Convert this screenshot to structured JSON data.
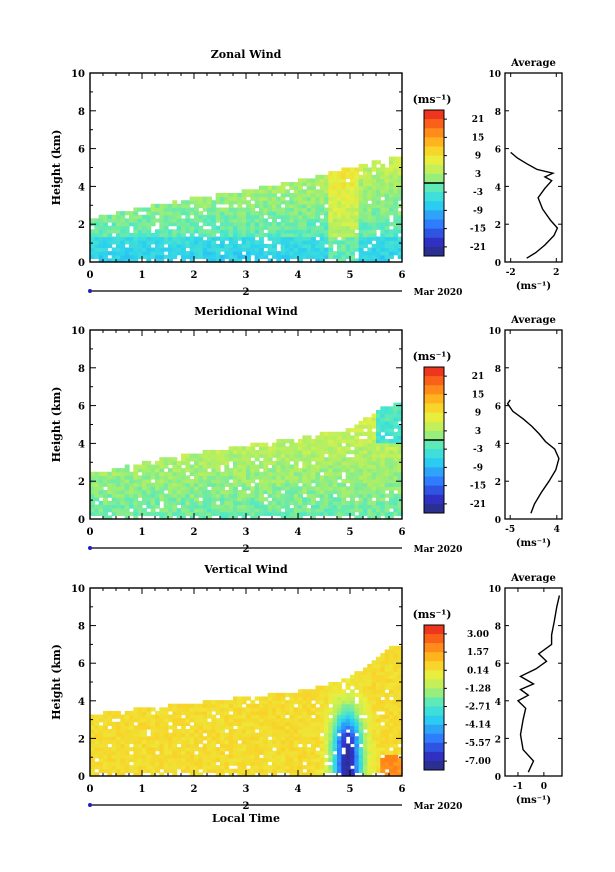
{
  "figure": {
    "date_label": "Mar 2020",
    "xlabel_bottom": "Local Time",
    "timeline_day": "2"
  },
  "chart_data": [
    {
      "type": "heatmap",
      "title": "Zonal Wind",
      "ylabel": "Height (km)",
      "xlim": [
        0,
        6
      ],
      "ylim": [
        0,
        10
      ],
      "xticks": [
        "0",
        "1",
        "2",
        "3",
        "4",
        "5",
        "6"
      ],
      "yticks": [
        "0",
        "2",
        "4",
        "6",
        "8",
        "10"
      ],
      "colorbar": {
        "unit_label": "(ms⁻¹)",
        "ticks": [
          "21",
          "15",
          "9",
          "3",
          "-3",
          "-9",
          "-15",
          "-21"
        ],
        "range": [
          -24,
          24
        ],
        "zero_line": 0
      },
      "coverage_top_km": [
        [
          0,
          2.3
        ],
        [
          1,
          2.9
        ],
        [
          2,
          3.4
        ],
        [
          3,
          3.8
        ],
        [
          4,
          4.3
        ],
        [
          4.8,
          4.9
        ],
        [
          5.8,
          5.5
        ]
      ],
      "average_profile": {
        "title": "Average",
        "xlabel": "(ms⁻¹)",
        "xlim": [
          -2.5,
          2.5
        ],
        "xticks": [
          "-2",
          "2"
        ],
        "points": [
          [
            -0.6,
            0.2
          ],
          [
            0.2,
            0.5
          ],
          [
            1.0,
            0.9
          ],
          [
            1.8,
            1.4
          ],
          [
            2.1,
            1.8
          ],
          [
            1.5,
            2.2
          ],
          [
            0.8,
            2.8
          ],
          [
            0.4,
            3.4
          ],
          [
            1.0,
            3.9
          ],
          [
            1.6,
            4.3
          ],
          [
            1.0,
            4.5
          ],
          [
            1.7,
            4.7
          ],
          [
            0.3,
            4.9
          ],
          [
            -0.6,
            5.2
          ],
          [
            -1.4,
            5.5
          ],
          [
            -2.0,
            5.8
          ]
        ]
      }
    },
    {
      "type": "heatmap",
      "title": "Meridional Wind",
      "ylabel": "Height (km)",
      "xlim": [
        0,
        6
      ],
      "ylim": [
        0,
        10
      ],
      "xticks": [
        "0",
        "1",
        "2",
        "3",
        "4",
        "5",
        "6"
      ],
      "yticks": [
        "0",
        "2",
        "4",
        "6",
        "8",
        "10"
      ],
      "colorbar": {
        "unit_label": "(ms⁻¹)",
        "ticks": [
          "21",
          "15",
          "9",
          "3",
          "-3",
          "-9",
          "-15",
          "-21"
        ],
        "range": [
          -24,
          24
        ],
        "zero_line": 0
      },
      "coverage_top_km": [
        [
          0,
          2.4
        ],
        [
          1,
          3.0
        ],
        [
          2,
          3.5
        ],
        [
          3,
          3.9
        ],
        [
          4,
          4.3
        ],
        [
          5,
          4.8
        ],
        [
          5.8,
          6.2
        ]
      ],
      "average_profile": {
        "title": "Average",
        "xlabel": "(ms⁻¹)",
        "xlim": [
          -6,
          5
        ],
        "xticks": [
          "-5",
          "4"
        ],
        "points": [
          [
            -1.0,
            0.3
          ],
          [
            -0.3,
            0.8
          ],
          [
            1.0,
            1.4
          ],
          [
            2.5,
            2.0
          ],
          [
            3.8,
            2.6
          ],
          [
            4.4,
            3.2
          ],
          [
            3.6,
            3.7
          ],
          [
            1.8,
            4.1
          ],
          [
            0.6,
            4.5
          ],
          [
            -0.8,
            4.9
          ],
          [
            -2.5,
            5.3
          ],
          [
            -4.5,
            5.7
          ],
          [
            -5.5,
            6.1
          ],
          [
            -5.0,
            6.3
          ]
        ]
      }
    },
    {
      "type": "heatmap",
      "title": "Vertical Wind",
      "ylabel": "Height (km)",
      "xlim": [
        0,
        6
      ],
      "ylim": [
        0,
        10
      ],
      "xticks": [
        "0",
        "1",
        "2",
        "3",
        "4",
        "5",
        "6"
      ],
      "yticks": [
        "0",
        "2",
        "4",
        "6",
        "8",
        "10"
      ],
      "colorbar": {
        "unit_label": "(ms⁻¹)",
        "ticks": [
          "3.00",
          "1.57",
          "0.14",
          "-1.28",
          "-2.71",
          "-4.14",
          "-5.57",
          "-7.00"
        ],
        "range": [
          -7.7,
          3.7
        ],
        "zero_line": null
      },
      "coverage_top_km": [
        [
          0,
          3.3
        ],
        [
          1,
          3.6
        ],
        [
          2,
          3.9
        ],
        [
          3,
          4.2
        ],
        [
          4,
          4.5
        ],
        [
          5,
          5.2
        ],
        [
          5.8,
          7.0
        ]
      ],
      "average_profile": {
        "title": "Average",
        "xlabel": "(ms⁻¹)",
        "xlim": [
          -1.5,
          0.7
        ],
        "xticks": [
          "-1",
          "0"
        ],
        "points": [
          [
            -0.6,
            0.2
          ],
          [
            -0.4,
            0.8
          ],
          [
            -0.8,
            1.4
          ],
          [
            -0.9,
            2.2
          ],
          [
            -0.8,
            3.0
          ],
          [
            -0.7,
            3.6
          ],
          [
            -1.0,
            4.0
          ],
          [
            -0.6,
            4.3
          ],
          [
            -0.9,
            4.6
          ],
          [
            -0.4,
            4.9
          ],
          [
            -0.9,
            5.3
          ],
          [
            -0.3,
            5.7
          ],
          [
            0.1,
            6.1
          ],
          [
            -0.2,
            6.5
          ],
          [
            0.3,
            7.0
          ],
          [
            0.3,
            7.5
          ],
          [
            0.4,
            8.2
          ],
          [
            0.5,
            9.0
          ],
          [
            0.6,
            9.6
          ]
        ]
      }
    }
  ]
}
